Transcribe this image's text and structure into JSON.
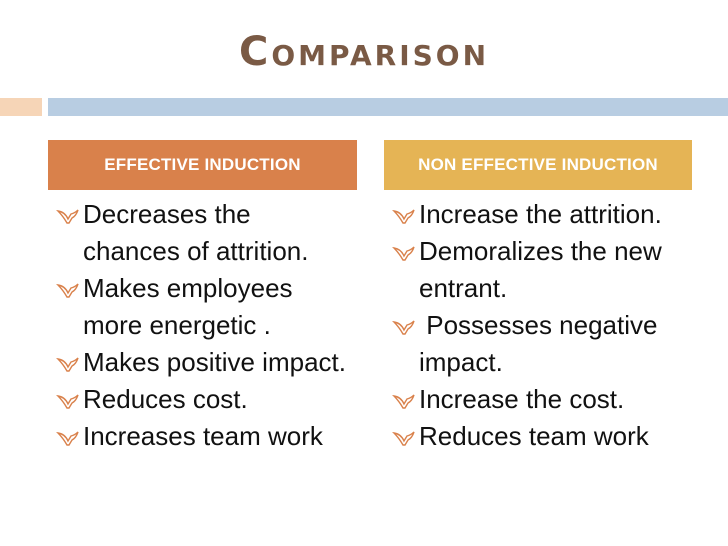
{
  "title": "Comparison",
  "colors": {
    "title": "#7a5a45",
    "left_header_bg": "#d9814b",
    "right_header_bg": "#e5b455",
    "accent_bar_left": "#f6d5b7",
    "accent_bar_right": "#b8cde2",
    "bullet": "#d9814b"
  },
  "columns": [
    {
      "header": "EFFECTIVE INDUCTION",
      "items": [
        "Decreases the chances of attrition.",
        "Makes employees more energetic .",
        "Makes positive impact.",
        "Reduces cost.",
        "Increases team work"
      ]
    },
    {
      "header": "NON EFFECTIVE INDUCTION",
      "items": [
        "Increase the attrition.",
        "Demoralizes the new entrant.",
        " Possesses negative impact.",
        "Increase the cost.",
        "Reduces team work"
      ]
    }
  ],
  "bullet_icon": "dove-bullet-icon"
}
